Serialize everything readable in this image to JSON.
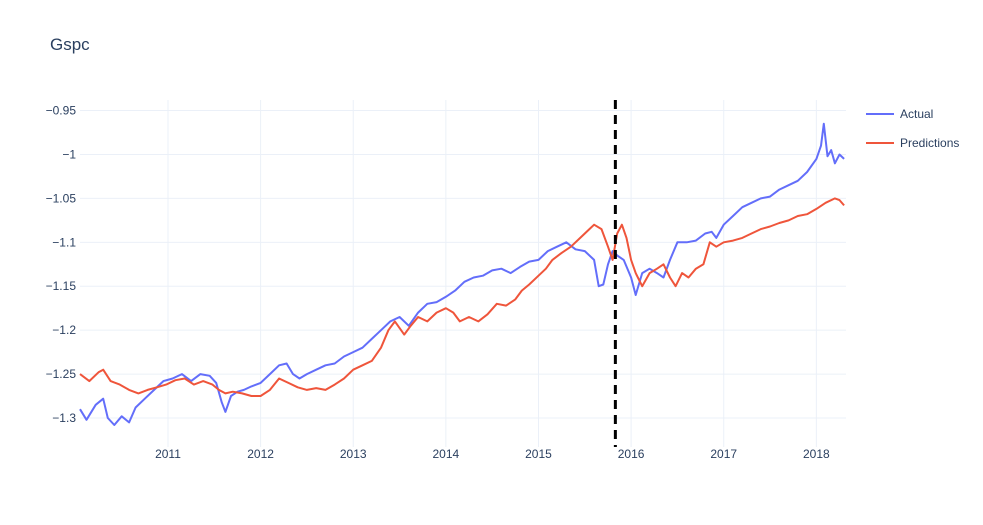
{
  "chart_data": {
    "type": "line",
    "title": "Gspc",
    "xlabel": "",
    "ylabel": "",
    "xlim": [
      2010.05,
      2018.32
    ],
    "ylim": [
      -1.333,
      -0.938
    ],
    "x_ticks": [
      2011,
      2012,
      2013,
      2014,
      2015,
      2016,
      2017,
      2018
    ],
    "x_tick_labels": [
      "2011",
      "2012",
      "2013",
      "2014",
      "2015",
      "2016",
      "2017",
      "2018"
    ],
    "y_ticks": [
      -0.95,
      -1.0,
      -1.05,
      -1.1,
      -1.15,
      -1.2,
      -1.25,
      -1.3
    ],
    "y_tick_labels": [
      "−0.95",
      "−1",
      "−1.05",
      "−1.1",
      "−1.15",
      "−1.2",
      "−1.25",
      "−1.3"
    ],
    "grid": true,
    "legend_position": "top-right",
    "split_line": {
      "x": 2015.83,
      "style": "dashed",
      "color": "#000000"
    },
    "series": [
      {
        "name": "Actual",
        "color": "#636efa",
        "x": [
          2010.05,
          2010.12,
          2010.22,
          2010.3,
          2010.35,
          2010.42,
          2010.5,
          2010.58,
          2010.65,
          2010.75,
          2010.85,
          2010.95,
          2011.05,
          2011.15,
          2011.25,
          2011.35,
          2011.45,
          2011.52,
          2011.58,
          2011.62,
          2011.68,
          2011.75,
          2011.82,
          2011.9,
          2012.0,
          2012.1,
          2012.2,
          2012.28,
          2012.35,
          2012.42,
          2012.5,
          2012.6,
          2012.7,
          2012.8,
          2012.9,
          2013.0,
          2013.1,
          2013.2,
          2013.3,
          2013.4,
          2013.5,
          2013.6,
          2013.7,
          2013.8,
          2013.9,
          2014.0,
          2014.1,
          2014.2,
          2014.3,
          2014.4,
          2014.5,
          2014.6,
          2014.7,
          2014.8,
          2014.9,
          2015.0,
          2015.1,
          2015.2,
          2015.3,
          2015.4,
          2015.5,
          2015.6,
          2015.65,
          2015.7,
          2015.75,
          2015.8,
          2015.85,
          2015.92,
          2016.0,
          2016.05,
          2016.12,
          2016.2,
          2016.28,
          2016.35,
          2016.42,
          2016.5,
          2016.6,
          2016.7,
          2016.8,
          2016.87,
          2016.92,
          2017.0,
          2017.1,
          2017.2,
          2017.3,
          2017.4,
          2017.5,
          2017.6,
          2017.7,
          2017.8,
          2017.9,
          2018.0,
          2018.05,
          2018.08,
          2018.12,
          2018.16,
          2018.2,
          2018.25,
          2018.3
        ],
        "values": [
          -1.29,
          -1.302,
          -1.285,
          -1.278,
          -1.3,
          -1.308,
          -1.298,
          -1.305,
          -1.288,
          -1.278,
          -1.268,
          -1.258,
          -1.255,
          -1.25,
          -1.258,
          -1.25,
          -1.252,
          -1.26,
          -1.282,
          -1.293,
          -1.275,
          -1.27,
          -1.268,
          -1.264,
          -1.26,
          -1.25,
          -1.24,
          -1.238,
          -1.25,
          -1.255,
          -1.25,
          -1.245,
          -1.24,
          -1.238,
          -1.23,
          -1.225,
          -1.22,
          -1.21,
          -1.2,
          -1.19,
          -1.185,
          -1.195,
          -1.18,
          -1.17,
          -1.168,
          -1.162,
          -1.155,
          -1.145,
          -1.14,
          -1.138,
          -1.132,
          -1.13,
          -1.135,
          -1.128,
          -1.122,
          -1.12,
          -1.11,
          -1.105,
          -1.1,
          -1.108,
          -1.11,
          -1.12,
          -1.15,
          -1.148,
          -1.125,
          -1.11,
          -1.115,
          -1.12,
          -1.14,
          -1.16,
          -1.135,
          -1.13,
          -1.135,
          -1.14,
          -1.12,
          -1.1,
          -1.1,
          -1.098,
          -1.09,
          -1.088,
          -1.095,
          -1.08,
          -1.07,
          -1.06,
          -1.055,
          -1.05,
          -1.048,
          -1.04,
          -1.035,
          -1.03,
          -1.02,
          -1.005,
          -0.99,
          -0.965,
          -1.002,
          -0.995,
          -1.01,
          -1.0,
          -1.005
        ]
      },
      {
        "name": "Predictions",
        "color": "#ef553b",
        "x": [
          2010.05,
          2010.15,
          2010.25,
          2010.3,
          2010.38,
          2010.48,
          2010.58,
          2010.68,
          2010.78,
          2010.88,
          2010.98,
          2011.08,
          2011.18,
          2011.28,
          2011.38,
          2011.48,
          2011.55,
          2011.62,
          2011.7,
          2011.8,
          2011.9,
          2012.0,
          2012.1,
          2012.2,
          2012.3,
          2012.4,
          2012.5,
          2012.6,
          2012.7,
          2012.8,
          2012.9,
          2013.0,
          2013.1,
          2013.2,
          2013.3,
          2013.38,
          2013.45,
          2013.55,
          2013.62,
          2013.7,
          2013.8,
          2013.9,
          2014.0,
          2014.08,
          2014.15,
          2014.25,
          2014.35,
          2014.45,
          2014.55,
          2014.65,
          2014.75,
          2014.82,
          2014.9,
          2015.0,
          2015.08,
          2015.15,
          2015.25,
          2015.35,
          2015.45,
          2015.55,
          2015.6,
          2015.68,
          2015.75,
          2015.8,
          2015.85,
          2015.9,
          2015.95,
          2016.0,
          2016.05,
          2016.12,
          2016.2,
          2016.28,
          2016.35,
          2016.42,
          2016.48,
          2016.55,
          2016.62,
          2016.7,
          2016.78,
          2016.85,
          2016.92,
          2017.0,
          2017.1,
          2017.2,
          2017.3,
          2017.4,
          2017.5,
          2017.6,
          2017.7,
          2017.8,
          2017.9,
          2018.0,
          2018.1,
          2018.2,
          2018.25,
          2018.3
        ],
        "values": [
          -1.25,
          -1.258,
          -1.248,
          -1.245,
          -1.258,
          -1.262,
          -1.268,
          -1.272,
          -1.268,
          -1.265,
          -1.262,
          -1.257,
          -1.255,
          -1.262,
          -1.258,
          -1.262,
          -1.268,
          -1.272,
          -1.27,
          -1.272,
          -1.275,
          -1.275,
          -1.268,
          -1.255,
          -1.26,
          -1.265,
          -1.268,
          -1.266,
          -1.268,
          -1.262,
          -1.255,
          -1.245,
          -1.24,
          -1.235,
          -1.22,
          -1.2,
          -1.19,
          -1.205,
          -1.195,
          -1.185,
          -1.19,
          -1.18,
          -1.175,
          -1.18,
          -1.19,
          -1.185,
          -1.19,
          -1.182,
          -1.17,
          -1.172,
          -1.165,
          -1.155,
          -1.148,
          -1.138,
          -1.13,
          -1.12,
          -1.112,
          -1.105,
          -1.095,
          -1.085,
          -1.08,
          -1.085,
          -1.105,
          -1.12,
          -1.09,
          -1.08,
          -1.095,
          -1.12,
          -1.135,
          -1.15,
          -1.135,
          -1.13,
          -1.125,
          -1.14,
          -1.15,
          -1.135,
          -1.14,
          -1.13,
          -1.125,
          -1.1,
          -1.105,
          -1.1,
          -1.098,
          -1.095,
          -1.09,
          -1.085,
          -1.082,
          -1.078,
          -1.075,
          -1.07,
          -1.068,
          -1.062,
          -1.055,
          -1.05,
          -1.052,
          -1.058
        ]
      }
    ]
  }
}
